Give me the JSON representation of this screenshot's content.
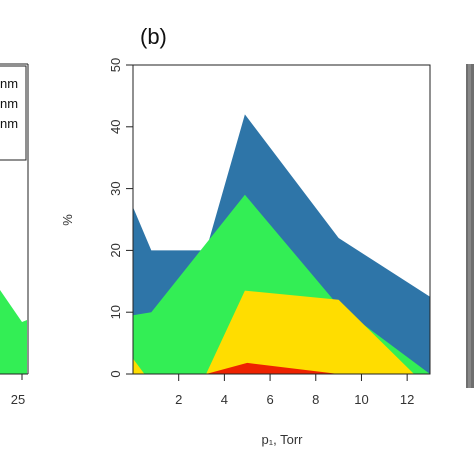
{
  "panel_label": "(b)",
  "left_panel": {
    "x_tick_label": "25",
    "legend_texts": [
      "nm",
      "nm",
      "nm"
    ],
    "area_color": "#33ee55"
  },
  "chart_data": {
    "type": "area",
    "stacking": "none",
    "xlabel": "p₁, Torr",
    "ylabel": "%",
    "xlim": [
      0,
      13
    ],
    "ylim": [
      0,
      50
    ],
    "x_ticks": [
      2,
      4,
      6,
      8,
      10,
      12
    ],
    "y_ticks": [
      0,
      10,
      20,
      30,
      40,
      50
    ],
    "grid": false,
    "series": [
      {
        "color": "#2e75a8",
        "x": [
          0,
          0.8,
          3.2,
          4.9,
          9,
          13
        ],
        "y": [
          27,
          20,
          20,
          42,
          22,
          12.5
        ]
      },
      {
        "color": "#33ee55",
        "x": [
          0,
          0.8,
          4.9,
          9,
          13
        ],
        "y": [
          9.5,
          10,
          29,
          11,
          0
        ]
      },
      {
        "color": "#ffdd00",
        "x": [
          0,
          0.5,
          2.8,
          3.2,
          4.9,
          9,
          12.3
        ],
        "y": [
          2.5,
          0,
          0,
          0,
          13.5,
          12,
          0
        ]
      },
      {
        "color": "#ee2200",
        "x": [
          3.2,
          5,
          9
        ],
        "y": [
          0,
          1.8,
          0
        ]
      }
    ]
  }
}
